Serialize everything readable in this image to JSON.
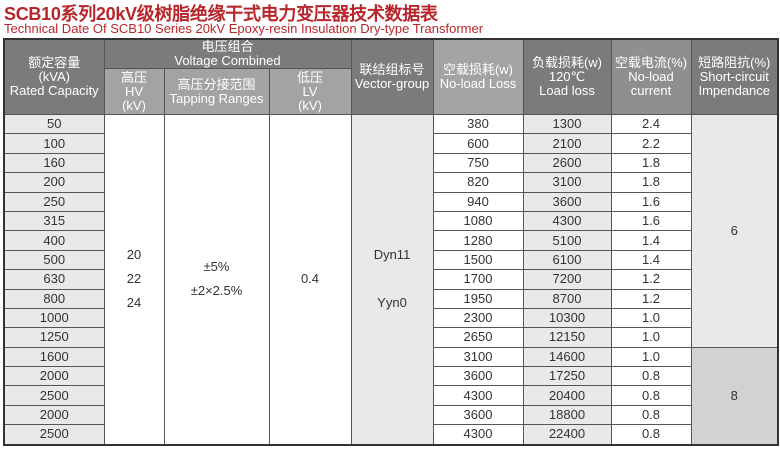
{
  "title": "SCB10系列20kV级树脂绝缘干式电力变压器技术数据表",
  "subtitle": "Technical Date Of  SCB10 Series 20kV Epoxy-resin Insulation Dry-type Transformer",
  "headers": {
    "capacity": [
      "额定容量",
      "(kVA)",
      "Rated Capacity"
    ],
    "voltage_combined": [
      "电压组合",
      "Voltage Combined"
    ],
    "hv": [
      "高压",
      "HV",
      "(kV)"
    ],
    "tapping": [
      "高压分接范围",
      "Tapping Ranges"
    ],
    "lv": [
      "低压",
      "LV",
      "(kV)"
    ],
    "vector": [
      "联结组标号",
      "Vector-group"
    ],
    "no_load_loss": [
      "空载损耗(w)",
      "No-load Loss"
    ],
    "load_loss": [
      "负载损耗(w)",
      "120℃",
      "Load loss"
    ],
    "no_load_current": [
      "空载电流(%)",
      "No-load",
      "current"
    ],
    "impedance": [
      "短路阻抗(%)",
      "Short-circuit",
      "Impendance"
    ]
  },
  "merged": {
    "hv": [
      "20",
      "22",
      "24"
    ],
    "tapping": [
      "±5%",
      "±2×2.5%"
    ],
    "lv": "0.4",
    "vector": [
      "Dyn11",
      "Yyn0"
    ],
    "impedance_a": "6",
    "impedance_b": "8"
  },
  "rows": [
    [
      "50",
      "380",
      "1300",
      "2.4"
    ],
    [
      "100",
      "600",
      "2100",
      "2.2"
    ],
    [
      "160",
      "750",
      "2600",
      "1.8"
    ],
    [
      "200",
      "820",
      "3100",
      "1.8"
    ],
    [
      "250",
      "940",
      "3600",
      "1.6"
    ],
    [
      "315",
      "1080",
      "4300",
      "1.6"
    ],
    [
      "400",
      "1280",
      "5100",
      "1.4"
    ],
    [
      "500",
      "1500",
      "6100",
      "1.4"
    ],
    [
      "630",
      "1700",
      "7200",
      "1.2"
    ],
    [
      "800",
      "1950",
      "8700",
      "1.2"
    ],
    [
      "1000",
      "2300",
      "10300",
      "1.0"
    ],
    [
      "1250",
      "2650",
      "12150",
      "1.0"
    ],
    [
      "1600",
      "3100",
      "14600",
      "1.0"
    ],
    [
      "2000",
      "3600",
      "17250",
      "0.8"
    ],
    [
      "2500",
      "4300",
      "20400",
      "0.8"
    ],
    [
      "2000",
      "3600",
      "18800",
      "0.8"
    ],
    [
      "2500",
      "4300",
      "22400",
      "0.8"
    ]
  ]
}
